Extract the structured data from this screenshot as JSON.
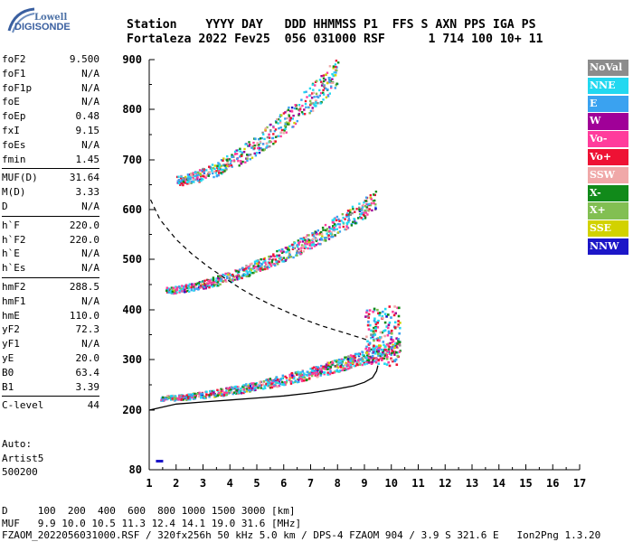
{
  "logo": {
    "line1": "Lowell",
    "line2": "DIGISONDE"
  },
  "header": {
    "line1": "Station    YYYY DAY   DDD HHMMSS P1  FFS S AXN PPS IGA PS",
    "line2": "Fortaleza 2022 Fev25  056 031000 RSF      1 714 100 10+ 11"
  },
  "params": [
    [
      {
        "name": "foF2",
        "value": "9.500"
      },
      {
        "name": "foF1",
        "value": "N/A"
      },
      {
        "name": "foF1p",
        "value": "N/A"
      },
      {
        "name": "foE",
        "value": "N/A"
      },
      {
        "name": "foEp",
        "value": "0.48"
      },
      {
        "name": "fxI",
        "value": "9.15"
      },
      {
        "name": "foEs",
        "value": "N/A"
      },
      {
        "name": "fmin",
        "value": "1.45"
      }
    ],
    [
      {
        "name": "MUF(D)",
        "value": "31.64"
      },
      {
        "name": "M(D)",
        "value": "3.33"
      },
      {
        "name": "D",
        "value": "N/A"
      }
    ],
    [
      {
        "name": "h`F",
        "value": "220.0"
      },
      {
        "name": "h`F2",
        "value": "220.0"
      },
      {
        "name": "h`E",
        "value": "N/A"
      },
      {
        "name": "h`Es",
        "value": "N/A"
      }
    ],
    [
      {
        "name": "hmF2",
        "value": "288.5"
      },
      {
        "name": "hmF1",
        "value": "N/A"
      },
      {
        "name": "hmE",
        "value": "110.0"
      },
      {
        "name": "yF2",
        "value": "72.3"
      },
      {
        "name": "yF1",
        "value": "N/A"
      },
      {
        "name": "yE",
        "value": "20.0"
      },
      {
        "name": "B0",
        "value": "63.4"
      },
      {
        "name": "B1",
        "value": "3.39"
      }
    ],
    [
      {
        "name": "C-level",
        "value": "44"
      }
    ]
  ],
  "auto": {
    "line1": "Auto:",
    "line2": "Artist5",
    "line3": "500200"
  },
  "legend": [
    {
      "label": "NoVal",
      "color": "#8c8c8c"
    },
    {
      "label": "NNE",
      "color": "#22d8f0"
    },
    {
      "label": "E",
      "color": "#3aa2f0"
    },
    {
      "label": "W",
      "color": "#a00098"
    },
    {
      "label": "Vo-",
      "color": "#ff3c9c"
    },
    {
      "label": "Vo+",
      "color": "#ee1234"
    },
    {
      "label": "SSW",
      "color": "#f0a8a8"
    },
    {
      "label": "X-",
      "color": "#118a1a"
    },
    {
      "label": "X+",
      "color": "#82bf52"
    },
    {
      "label": "SSE",
      "color": "#d2d200"
    },
    {
      "label": "NNW",
      "color": "#1c16c8"
    }
  ],
  "chart_data": {
    "type": "scatter",
    "x_ticks": [
      "1",
      "2",
      "3",
      "4",
      "5",
      "6",
      "7",
      "8",
      "9",
      "10",
      "11",
      "12",
      "13",
      "14",
      "15",
      "16",
      "17"
    ],
    "y_ticks": [
      "80",
      "200",
      "300",
      "400",
      "500",
      "600",
      "700",
      "800",
      "900"
    ],
    "xlim": [
      1,
      17
    ],
    "y_scale": "ionogram height (km), nonlinear",
    "profile_curve": {
      "x": [
        1.0,
        2.0,
        3.0,
        4.0,
        5.0,
        6.0,
        7.0,
        8.0,
        8.6,
        9.0,
        9.3,
        9.45,
        9.5
      ],
      "y": [
        200,
        212,
        216,
        220,
        224,
        228,
        234,
        242,
        248,
        255,
        264,
        277,
        288
      ]
    },
    "model_dashed_curve": {
      "x": [
        1.05,
        1.4,
        2.0,
        2.6,
        3.2,
        3.8,
        4.4,
        5.0,
        5.6,
        6.2,
        6.8,
        7.4,
        8.0,
        8.6,
        9.2
      ],
      "y": [
        620,
        580,
        540,
        510,
        485,
        463,
        442,
        424,
        408,
        394,
        380,
        368,
        358,
        348,
        338
      ]
    },
    "traces": [
      {
        "name": "F1 trace (1-hop)",
        "x_start": 1.4,
        "x_end": 10.3,
        "y_start": 225,
        "y_end": 330,
        "width": 22
      },
      {
        "name": "2-hop trace",
        "x_start": 1.6,
        "x_end": 9.4,
        "y_start": 440,
        "y_end": 620,
        "width": 30
      },
      {
        "name": "3-hop trace",
        "x_start": 2.0,
        "x_end": 8.0,
        "y_start": 660,
        "y_end": 880,
        "width": 45
      }
    ]
  },
  "footer": {
    "line1": "D     100  200  400  600  800 1000 1500 3000 [km]",
    "line2": "MUF   9.9 10.0 10.5 11.3 12.4 14.1 19.0 31.6 [MHz]",
    "line3": "FZAOM_2022056031000.RSF / 320fx256h 50 kHz 5.0 km / DPS-4 FZAOM 904 / 3.9 S 321.6 E   Ion2Png 1.3.20"
  }
}
